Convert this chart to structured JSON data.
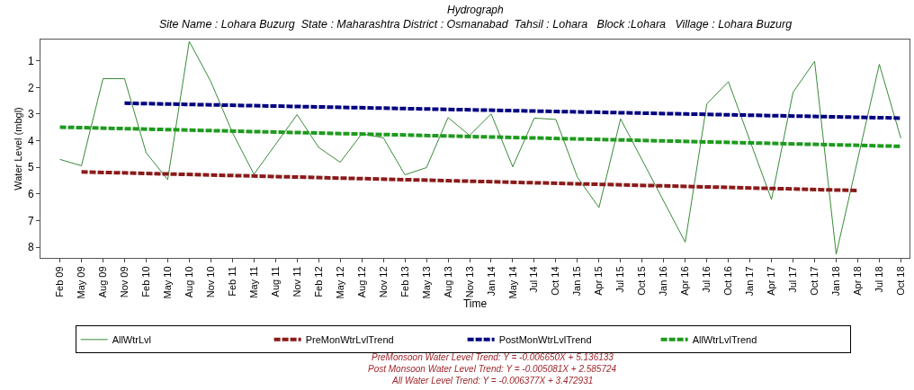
{
  "chart_data": {
    "type": "line",
    "title": "Hydrograph",
    "subtitle": "Site Name : Lohara Buzurg  State : Maharashtra District : Osmanabad  Tahsil : Lohara   Block :Lohara   Village : Lohara Buzurg",
    "xlabel": "Time",
    "ylabel": "Water Level (mbgl)",
    "categories": [
      "Feb 09",
      "May 09",
      "Aug 09",
      "Nov 09",
      "Feb 10",
      "May 10",
      "Aug 10",
      "Nov 10",
      "Feb 11",
      "May 11",
      "Aug 11",
      "Nov 11",
      "Feb 12",
      "May 12",
      "Aug 12",
      "Nov 12",
      "Feb 13",
      "May 13",
      "Aug 13",
      "Nov 13",
      "Jan 14",
      "May 14",
      "Jul 14",
      "Oct 14",
      "Jan 15",
      "Apr 15",
      "Jul 15",
      "Oct 15",
      "Jan 16",
      "Apr 16",
      "Jul 16",
      "Oct 16",
      "Jan 17",
      "Apr 17",
      "Jul 17",
      "Oct 17",
      "Jan 18",
      "Apr 18",
      "Jul 18",
      "Oct 18"
    ],
    "series": [
      {
        "name": "AllWtrLvl",
        "color": "#3a8a3a",
        "line_style": "solid",
        "values": [
          4.7,
          4.94,
          1.67,
          1.67,
          4.45,
          5.46,
          0.27,
          1.78,
          3.69,
          5.26,
          null,
          3.02,
          4.25,
          4.81,
          3.74,
          3.89,
          5.28,
          5.01,
          3.13,
          3.8,
          2.99,
          4.98,
          3.15,
          3.2,
          5.37,
          6.51,
          3.18,
          null,
          null,
          7.81,
          2.62,
          1.78,
          null,
          6.21,
          2.18,
          1.02,
          8.26,
          null,
          1.13,
          3.91
        ]
      },
      {
        "name": "PreMonWtrLvlTrend",
        "color": "#8b1a1a",
        "line_style": "dashed",
        "x": [
          "May 09",
          "Apr 18"
        ],
        "values": [
          5.17,
          5.87
        ]
      },
      {
        "name": "PostMonWtrLvlTrend",
        "color": "#000080",
        "line_style": "dashed",
        "x": [
          "Nov 09",
          "Oct 18"
        ],
        "values": [
          2.59,
          3.15
        ]
      },
      {
        "name": "AllWtrLvlTrend",
        "color": "#1f9a1f",
        "line_style": "dashed",
        "x": [
          "Feb 09",
          "Oct 18"
        ],
        "values": [
          3.49,
          4.21
        ]
      }
    ],
    "ylim": [
      8.4,
      0.2
    ],
    "yticks": [
      1,
      2,
      3,
      4,
      5,
      6,
      7,
      8
    ],
    "legend": "bottom",
    "marker": "none",
    "annotations": [
      "PreMonsoon Water Level Trend: Y = -0.006650X + 5.136133",
      "Post Monsoon Water Level Trend: Y = -0.005081X + 2.585724",
      "All Water Level Trend: Y = -0.006377X + 3.472931"
    ]
  }
}
